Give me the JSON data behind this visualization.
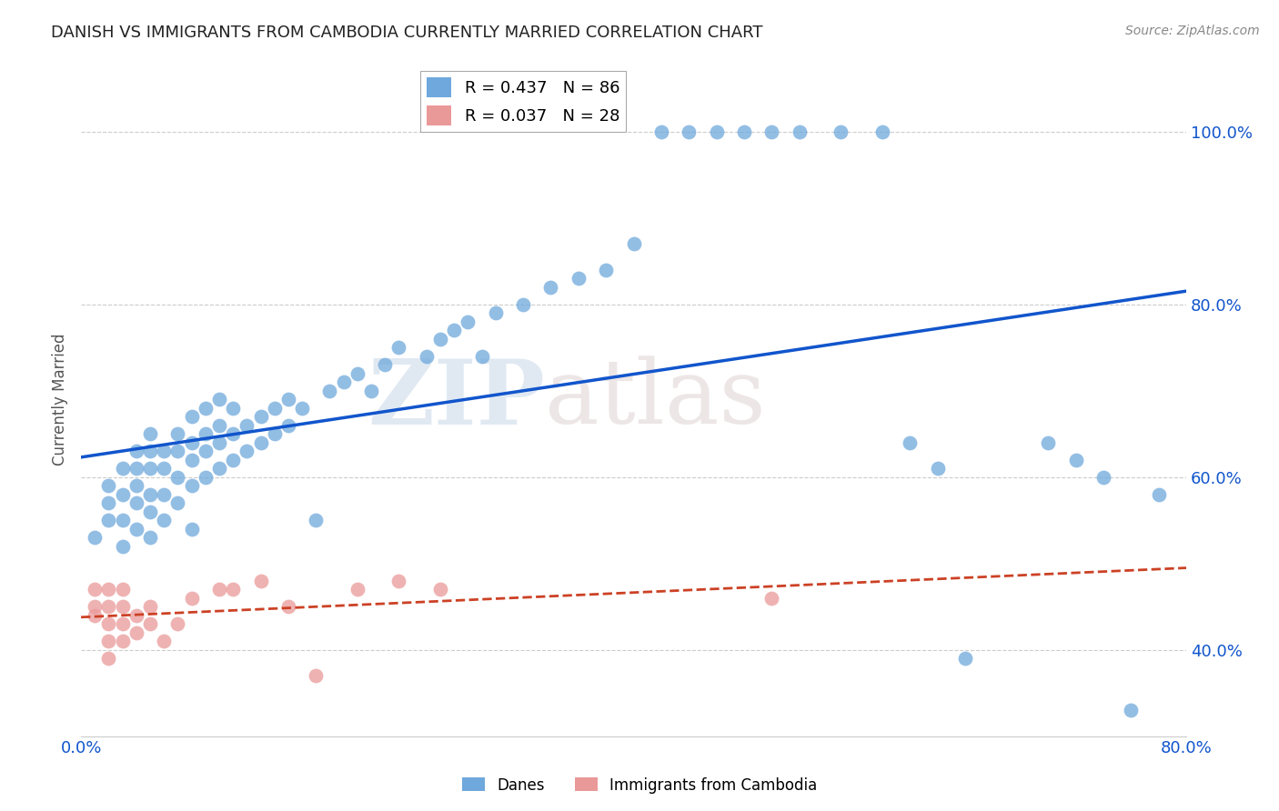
{
  "title": "DANISH VS IMMIGRANTS FROM CAMBODIA CURRENTLY MARRIED CORRELATION CHART",
  "source": "Source: ZipAtlas.com",
  "ylabel": "Currently Married",
  "xlim": [
    0.0,
    0.8
  ],
  "ylim": [
    0.3,
    1.08
  ],
  "ytick_vals": [
    0.4,
    0.6,
    0.8,
    1.0
  ],
  "ytick_labels": [
    "40.0%",
    "60.0%",
    "80.0%",
    "100.0%"
  ],
  "xtick_vals": [
    0.0,
    0.2,
    0.4,
    0.6,
    0.8
  ],
  "xtick_labels": [
    "0.0%",
    "",
    "",
    "",
    "80.0%"
  ],
  "danes_R": 0.437,
  "danes_N": 86,
  "immigrants_R": 0.037,
  "immigrants_N": 28,
  "danes_color": "#6fa8dc",
  "immigrants_color": "#ea9999",
  "danes_line_color": "#1155cc",
  "immigrants_line_color": "#cc4125",
  "background_color": "#ffffff",
  "watermark_part1": "ZIP",
  "watermark_part2": "atlas",
  "danes_x": [
    0.01,
    0.02,
    0.02,
    0.02,
    0.03,
    0.03,
    0.03,
    0.03,
    0.04,
    0.04,
    0.04,
    0.04,
    0.04,
    0.05,
    0.05,
    0.05,
    0.05,
    0.05,
    0.05,
    0.06,
    0.06,
    0.06,
    0.06,
    0.07,
    0.07,
    0.07,
    0.07,
    0.08,
    0.08,
    0.08,
    0.08,
    0.08,
    0.09,
    0.09,
    0.09,
    0.09,
    0.1,
    0.1,
    0.1,
    0.1,
    0.11,
    0.11,
    0.11,
    0.12,
    0.12,
    0.13,
    0.13,
    0.14,
    0.14,
    0.15,
    0.15,
    0.16,
    0.17,
    0.18,
    0.19,
    0.2,
    0.21,
    0.22,
    0.23,
    0.25,
    0.26,
    0.27,
    0.28,
    0.29,
    0.3,
    0.32,
    0.34,
    0.36,
    0.38,
    0.4,
    0.42,
    0.44,
    0.46,
    0.48,
    0.5,
    0.52,
    0.55,
    0.58,
    0.6,
    0.62,
    0.64,
    0.7,
    0.72,
    0.74,
    0.76,
    0.78
  ],
  "danes_y": [
    0.53,
    0.55,
    0.57,
    0.59,
    0.52,
    0.55,
    0.58,
    0.61,
    0.54,
    0.57,
    0.59,
    0.61,
    0.63,
    0.53,
    0.56,
    0.58,
    0.61,
    0.63,
    0.65,
    0.55,
    0.58,
    0.61,
    0.63,
    0.57,
    0.6,
    0.63,
    0.65,
    0.59,
    0.62,
    0.64,
    0.67,
    0.54,
    0.6,
    0.63,
    0.65,
    0.68,
    0.61,
    0.64,
    0.66,
    0.69,
    0.62,
    0.65,
    0.68,
    0.63,
    0.66,
    0.64,
    0.67,
    0.65,
    0.68,
    0.66,
    0.69,
    0.68,
    0.55,
    0.7,
    0.71,
    0.72,
    0.7,
    0.73,
    0.75,
    0.74,
    0.76,
    0.77,
    0.78,
    0.74,
    0.79,
    0.8,
    0.82,
    0.83,
    0.84,
    0.87,
    1.0,
    1.0,
    1.0,
    1.0,
    1.0,
    1.0,
    1.0,
    1.0,
    0.64,
    0.61,
    0.39,
    0.64,
    0.62,
    0.6,
    0.33,
    0.58
  ],
  "immigrants_x": [
    0.01,
    0.01,
    0.01,
    0.02,
    0.02,
    0.02,
    0.02,
    0.02,
    0.03,
    0.03,
    0.03,
    0.03,
    0.04,
    0.04,
    0.05,
    0.05,
    0.06,
    0.07,
    0.08,
    0.1,
    0.11,
    0.13,
    0.15,
    0.17,
    0.2,
    0.23,
    0.26,
    0.5
  ],
  "immigrants_y": [
    0.47,
    0.45,
    0.44,
    0.47,
    0.45,
    0.43,
    0.41,
    0.39,
    0.47,
    0.45,
    0.43,
    0.41,
    0.44,
    0.42,
    0.45,
    0.43,
    0.41,
    0.43,
    0.46,
    0.47,
    0.47,
    0.48,
    0.45,
    0.37,
    0.47,
    0.48,
    0.47,
    0.46
  ],
  "title_fontsize": 13,
  "source_fontsize": 10,
  "tick_fontsize": 13,
  "ylabel_fontsize": 12
}
